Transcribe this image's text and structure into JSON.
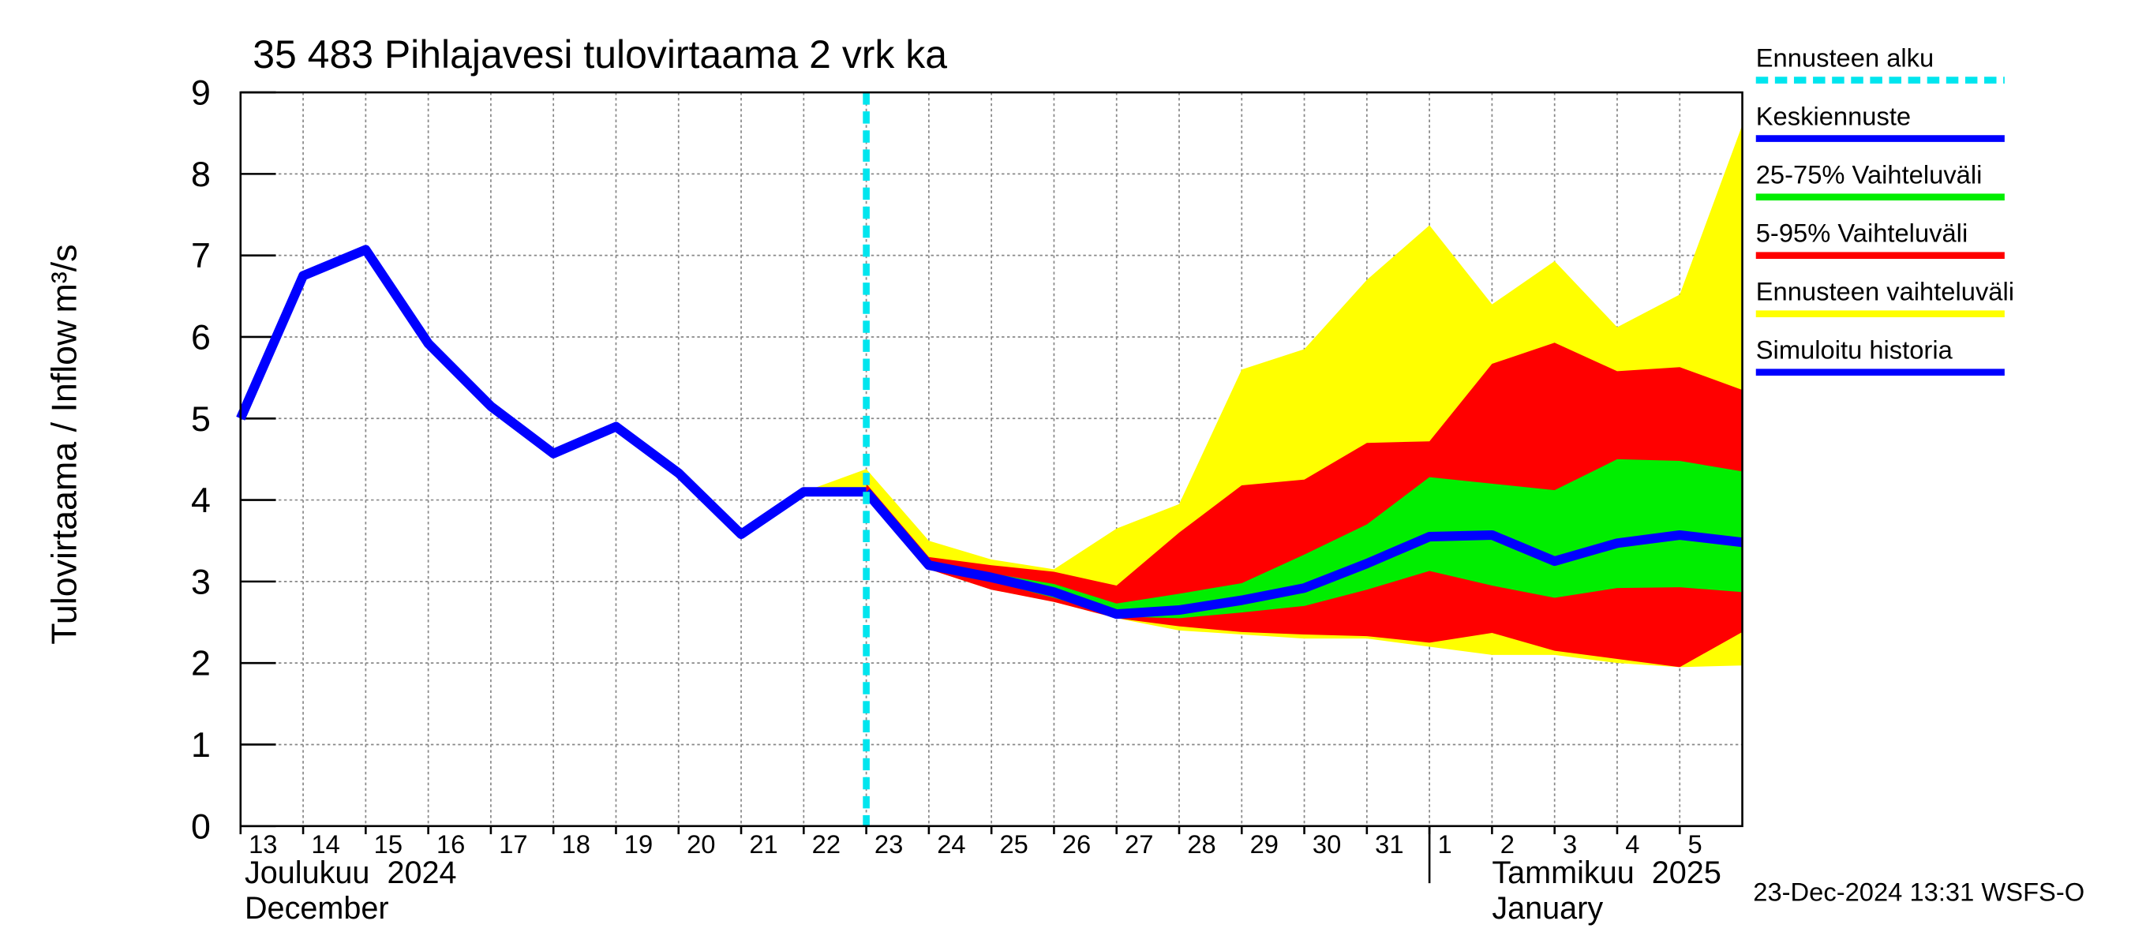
{
  "chart_data": {
    "type": "line",
    "title": "35 483 Pihlajavesi tulovirtaama 2 vrk ka",
    "y_label": "Tulovirtaama / Inflow",
    "y_unit": "m³/s",
    "timestamp": "23-Dec-2024 13:31 WSFS-O",
    "grid": true,
    "ylim": [
      0,
      9
    ],
    "yticks": [
      0,
      1,
      2,
      3,
      4,
      5,
      6,
      7,
      8,
      9
    ],
    "xlim": [
      "2024-12-13",
      "2025-01-06"
    ],
    "xticks": [
      {
        "value": "2024-12-13",
        "label": "13"
      },
      {
        "value": "2024-12-14",
        "label": "14"
      },
      {
        "value": "2024-12-15",
        "label": "15"
      },
      {
        "value": "2024-12-16",
        "label": "16"
      },
      {
        "value": "2024-12-17",
        "label": "17"
      },
      {
        "value": "2024-12-18",
        "label": "18"
      },
      {
        "value": "2024-12-19",
        "label": "19"
      },
      {
        "value": "2024-12-20",
        "label": "20"
      },
      {
        "value": "2024-12-21",
        "label": "21"
      },
      {
        "value": "2024-12-22",
        "label": "22"
      },
      {
        "value": "2024-12-23",
        "label": "23"
      },
      {
        "value": "2024-12-24",
        "label": "24"
      },
      {
        "value": "2024-12-25",
        "label": "25"
      },
      {
        "value": "2024-12-26",
        "label": "26"
      },
      {
        "value": "2024-12-27",
        "label": "27"
      },
      {
        "value": "2024-12-28",
        "label": "28"
      },
      {
        "value": "2024-12-29",
        "label": "29"
      },
      {
        "value": "2024-12-30",
        "label": "30"
      },
      {
        "value": "2024-12-31",
        "label": "31"
      },
      {
        "value": "2025-01-01",
        "label": "1"
      },
      {
        "value": "2025-01-02",
        "label": "2"
      },
      {
        "value": "2025-01-03",
        "label": "3"
      },
      {
        "value": "2025-01-04",
        "label": "4"
      },
      {
        "value": "2025-01-05",
        "label": "5"
      }
    ],
    "month_labels": [
      {
        "x": "2024-12-13",
        "line1": "Joulukuu  2024",
        "line2": "December"
      },
      {
        "x": "2025-01-01",
        "line1": "Tammikuu  2025",
        "line2": "January"
      }
    ],
    "forecast_start": {
      "name": "Ennusteen alku",
      "x": "2024-12-23",
      "color": "#00e5ee"
    },
    "x": [
      "2024-12-13",
      "2024-12-14",
      "2024-12-15",
      "2024-12-16",
      "2024-12-17",
      "2024-12-18",
      "2024-12-19",
      "2024-12-20",
      "2024-12-21",
      "2024-12-22",
      "2024-12-23",
      "2024-12-24",
      "2024-12-25",
      "2024-12-26",
      "2024-12-27",
      "2024-12-28",
      "2024-12-29",
      "2024-12-30",
      "2024-12-31",
      "2025-01-01",
      "2025-01-02",
      "2025-01-03",
      "2025-01-04",
      "2025-01-05",
      "2025-01-06"
    ],
    "series": [
      {
        "name": "Keskiennuste",
        "kind": "line",
        "color": "#0000ff",
        "values": [
          null,
          null,
          null,
          null,
          null,
          null,
          null,
          null,
          null,
          null,
          4.1,
          3.2,
          3.05,
          2.87,
          2.6,
          2.65,
          2.77,
          2.92,
          3.22,
          3.55,
          3.57,
          3.25,
          3.47,
          3.57,
          3.48
        ]
      },
      {
        "name": "25-75% Vaihteluväli",
        "kind": "band",
        "color": "#00ee00",
        "lower": [
          null,
          null,
          null,
          null,
          null,
          null,
          null,
          null,
          null,
          null,
          4.1,
          3.18,
          3.0,
          2.8,
          2.57,
          2.55,
          2.62,
          2.7,
          2.9,
          3.13,
          2.95,
          2.8,
          2.92,
          2.93,
          2.87
        ],
        "upper": [
          null,
          null,
          null,
          null,
          null,
          null,
          null,
          null,
          null,
          null,
          4.1,
          3.22,
          3.1,
          2.97,
          2.73,
          2.85,
          2.98,
          3.33,
          3.7,
          4.28,
          4.2,
          4.12,
          4.5,
          4.48,
          4.35
        ]
      },
      {
        "name": "5-95% Vaihteluväli",
        "kind": "band",
        "color": "#ff0000",
        "lower": [
          null,
          null,
          null,
          null,
          null,
          null,
          null,
          null,
          null,
          null,
          4.1,
          3.15,
          2.9,
          2.75,
          2.55,
          2.45,
          2.38,
          2.35,
          2.33,
          2.25,
          2.37,
          2.15,
          2.05,
          1.95,
          2.38
        ],
        "upper": [
          null,
          null,
          null,
          null,
          null,
          null,
          null,
          null,
          null,
          null,
          4.2,
          3.3,
          3.2,
          3.12,
          2.95,
          3.6,
          4.18,
          4.25,
          4.7,
          4.72,
          5.67,
          5.93,
          5.58,
          5.63,
          5.35
        ]
      },
      {
        "name": "Ennusteen vaihteluväli",
        "kind": "band",
        "color": "#ffff00",
        "lower": [
          null,
          null,
          null,
          null,
          null,
          null,
          null,
          null,
          null,
          4.1,
          4.1,
          3.15,
          2.9,
          2.75,
          2.55,
          2.4,
          2.35,
          2.3,
          2.3,
          2.2,
          2.1,
          2.1,
          2.0,
          1.95,
          1.97
        ],
        "upper": [
          null,
          null,
          null,
          null,
          null,
          null,
          null,
          null,
          null,
          4.1,
          4.38,
          3.5,
          3.27,
          3.15,
          3.65,
          3.95,
          5.6,
          5.85,
          6.7,
          7.37,
          6.4,
          6.93,
          6.12,
          6.52,
          8.6
        ]
      },
      {
        "name": "Simuloitu historia",
        "kind": "line",
        "color": "#0000ff",
        "values": [
          5.0,
          6.75,
          7.07,
          5.92,
          5.15,
          4.57,
          4.9,
          4.33,
          3.58,
          4.1,
          4.1,
          null,
          null,
          null,
          null,
          null,
          null,
          null,
          null,
          null,
          null,
          null,
          null,
          null,
          null
        ]
      }
    ]
  }
}
